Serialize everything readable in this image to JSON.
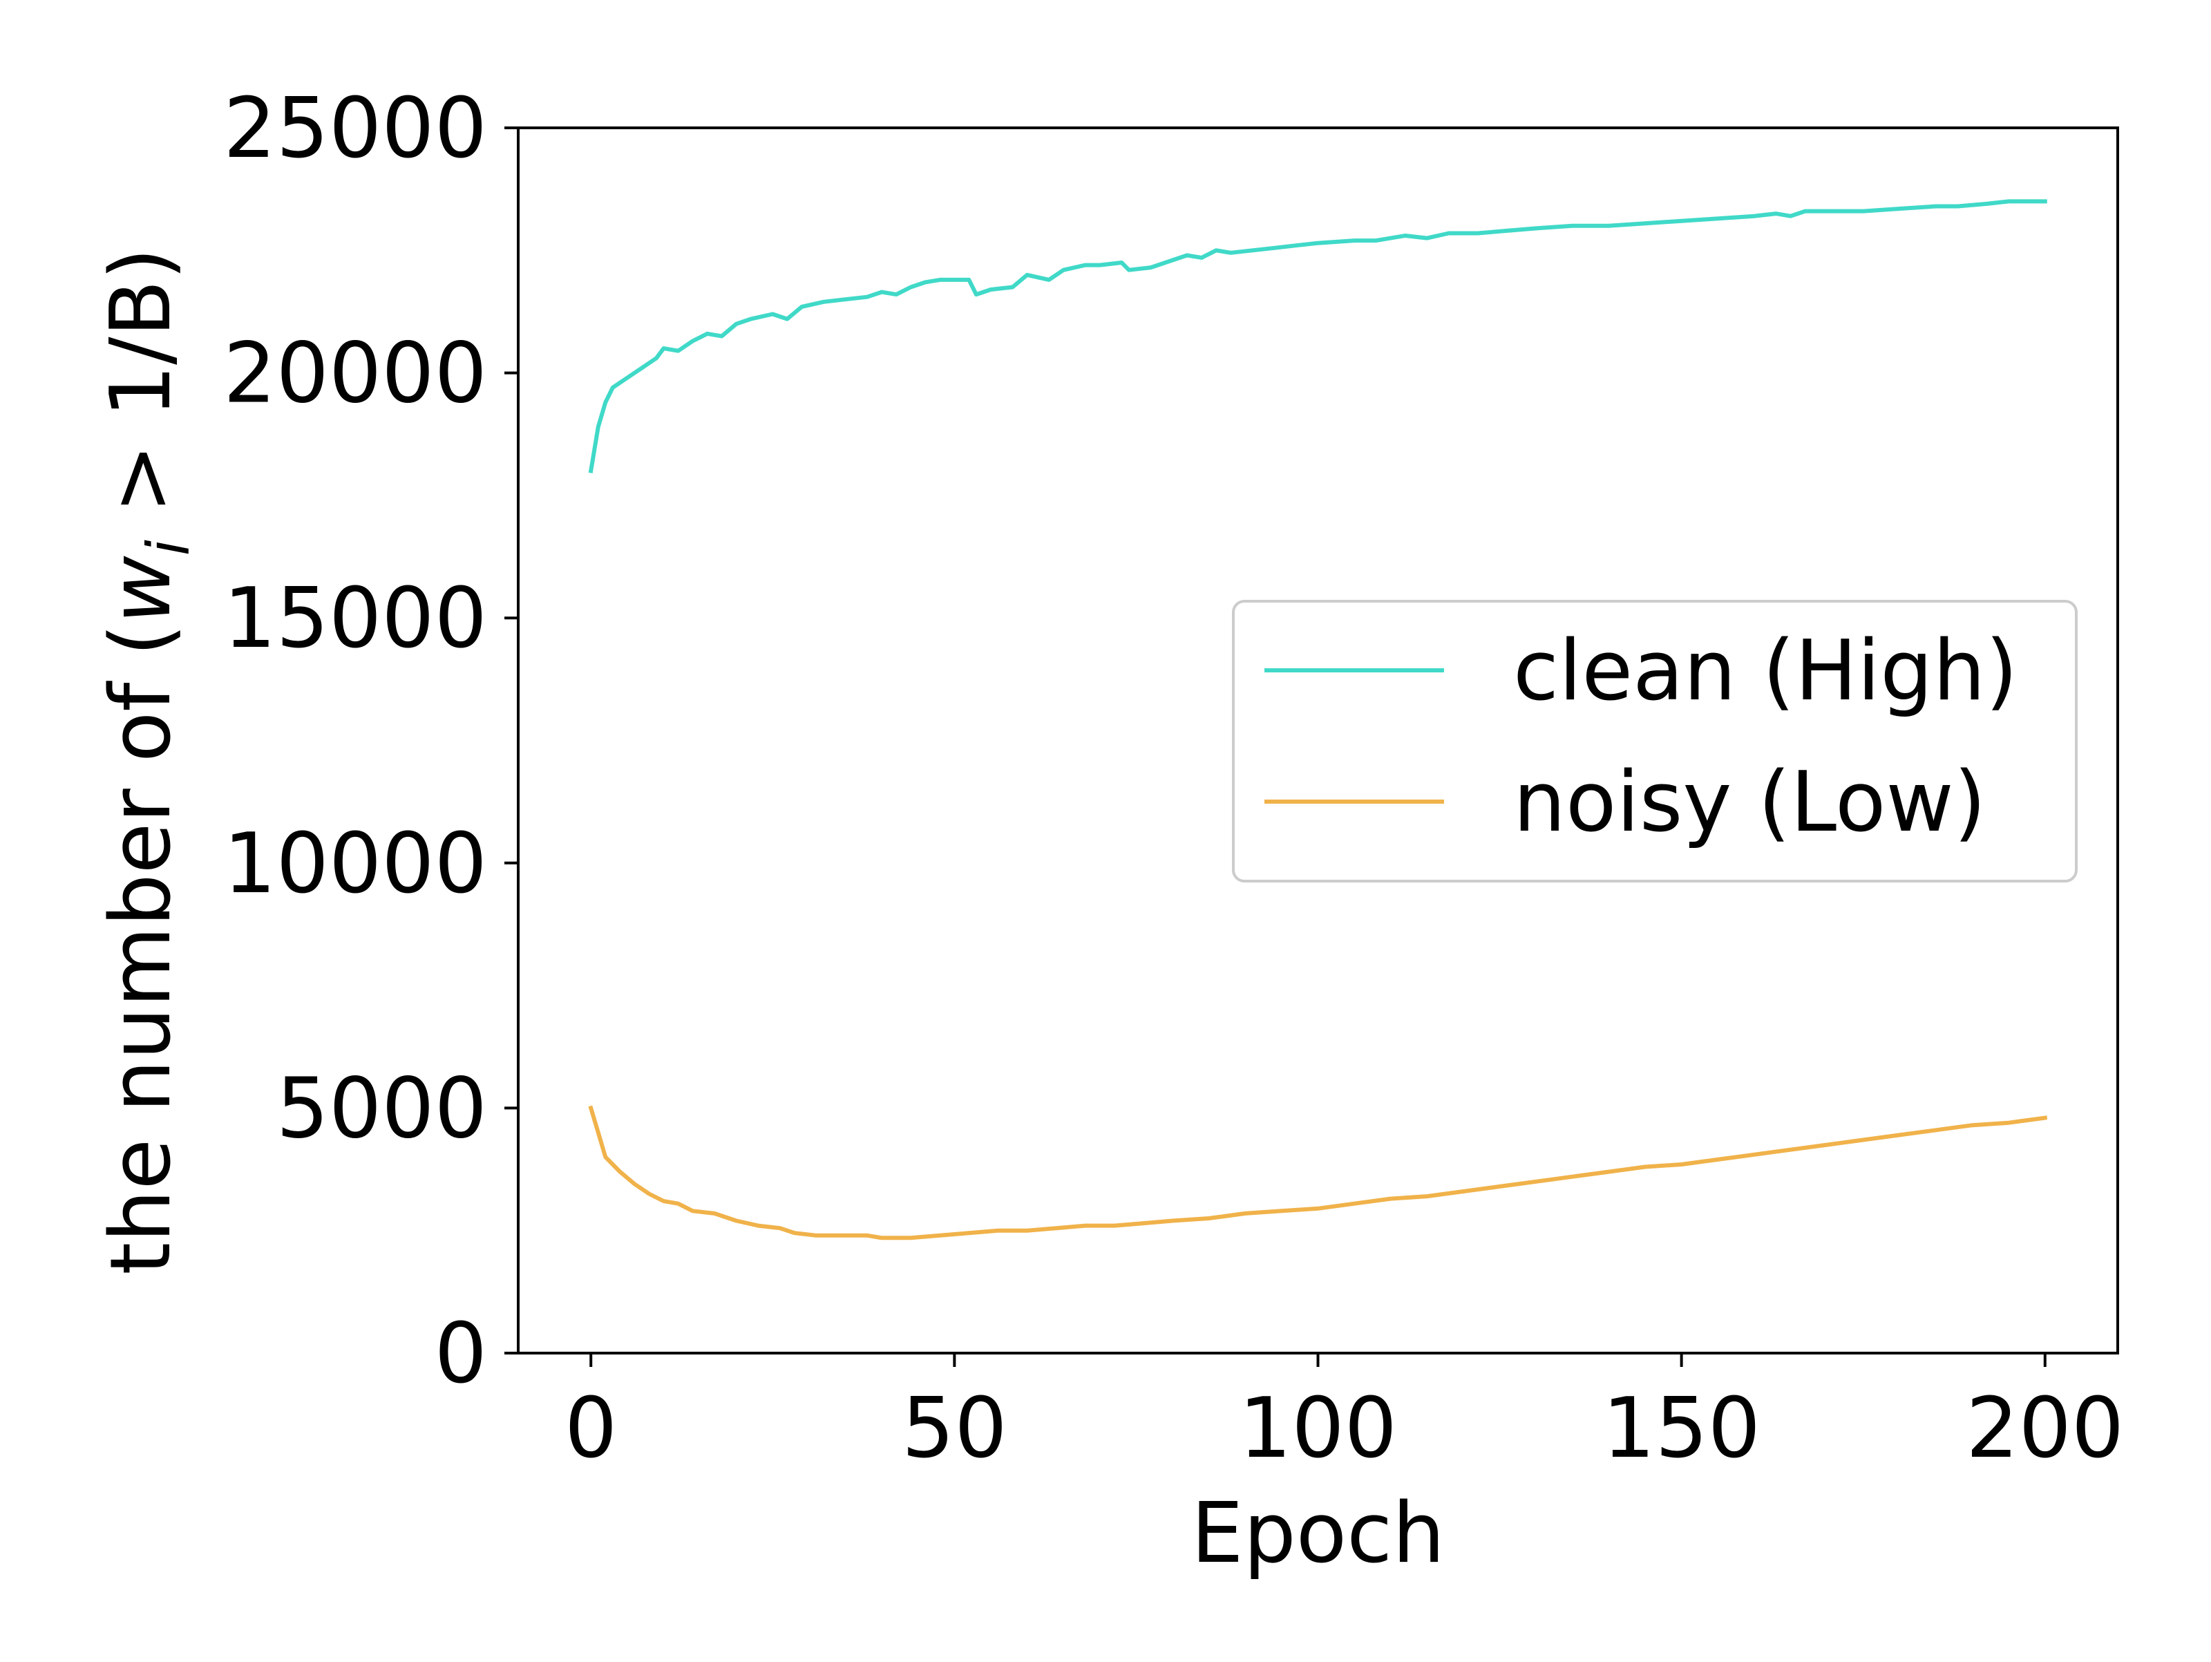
{
  "chart_data": {
    "type": "line",
    "title": "",
    "xlabel": "Epoch",
    "ylabel_parts": {
      "prefix": "the number of (",
      "var": "w",
      "sub": "i",
      "suffix": " > 1/B)"
    },
    "xlim": [
      -10,
      210
    ],
    "ylim": [
      0,
      25000
    ],
    "xticks": [
      0,
      50,
      100,
      150,
      200
    ],
    "yticks": [
      0,
      5000,
      10000,
      15000,
      20000,
      25000
    ],
    "grid": false,
    "legend_position": "center-right",
    "series": [
      {
        "name": "clean (High)",
        "color": "#40d9c8",
        "points": [
          [
            0,
            18000
          ],
          [
            1,
            18900
          ],
          [
            2,
            19400
          ],
          [
            3,
            19700
          ],
          [
            5,
            19900
          ],
          [
            7,
            20100
          ],
          [
            9,
            20300
          ],
          [
            10,
            20500
          ],
          [
            12,
            20450
          ],
          [
            14,
            20650
          ],
          [
            16,
            20800
          ],
          [
            18,
            20750
          ],
          [
            20,
            21000
          ],
          [
            22,
            21100
          ],
          [
            25,
            21200
          ],
          [
            27,
            21100
          ],
          [
            29,
            21350
          ],
          [
            32,
            21450
          ],
          [
            35,
            21500
          ],
          [
            38,
            21550
          ],
          [
            40,
            21650
          ],
          [
            42,
            21600
          ],
          [
            44,
            21750
          ],
          [
            46,
            21850
          ],
          [
            48,
            21900
          ],
          [
            52,
            21900
          ],
          [
            53,
            21600
          ],
          [
            55,
            21700
          ],
          [
            58,
            21750
          ],
          [
            60,
            22000
          ],
          [
            63,
            21900
          ],
          [
            65,
            22100
          ],
          [
            68,
            22200
          ],
          [
            70,
            22200
          ],
          [
            73,
            22250
          ],
          [
            74,
            22100
          ],
          [
            77,
            22150
          ],
          [
            80,
            22300
          ],
          [
            82,
            22400
          ],
          [
            84,
            22350
          ],
          [
            86,
            22500
          ],
          [
            88,
            22450
          ],
          [
            91,
            22500
          ],
          [
            94,
            22550
          ],
          [
            97,
            22600
          ],
          [
            100,
            22650
          ],
          [
            105,
            22700
          ],
          [
            108,
            22700
          ],
          [
            112,
            22800
          ],
          [
            115,
            22750
          ],
          [
            118,
            22850
          ],
          [
            122,
            22850
          ],
          [
            126,
            22900
          ],
          [
            130,
            22950
          ],
          [
            135,
            23000
          ],
          [
            140,
            23000
          ],
          [
            145,
            23050
          ],
          [
            150,
            23100
          ],
          [
            155,
            23150
          ],
          [
            160,
            23200
          ],
          [
            163,
            23250
          ],
          [
            165,
            23200
          ],
          [
            167,
            23300
          ],
          [
            170,
            23300
          ],
          [
            175,
            23300
          ],
          [
            180,
            23350
          ],
          [
            185,
            23400
          ],
          [
            188,
            23400
          ],
          [
            192,
            23450
          ],
          [
            195,
            23500
          ],
          [
            198,
            23500
          ],
          [
            200,
            23500
          ]
        ]
      },
      {
        "name": "noisy (Low)",
        "color": "#f0b24a",
        "points": [
          [
            0,
            5000
          ],
          [
            1,
            4500
          ],
          [
            2,
            4000
          ],
          [
            4,
            3700
          ],
          [
            6,
            3450
          ],
          [
            8,
            3250
          ],
          [
            10,
            3100
          ],
          [
            12,
            3050
          ],
          [
            14,
            2900
          ],
          [
            17,
            2850
          ],
          [
            20,
            2700
          ],
          [
            23,
            2600
          ],
          [
            26,
            2550
          ],
          [
            28,
            2450
          ],
          [
            31,
            2400
          ],
          [
            35,
            2400
          ],
          [
            38,
            2400
          ],
          [
            40,
            2350
          ],
          [
            44,
            2350
          ],
          [
            48,
            2400
          ],
          [
            52,
            2450
          ],
          [
            56,
            2500
          ],
          [
            60,
            2500
          ],
          [
            64,
            2550
          ],
          [
            68,
            2600
          ],
          [
            72,
            2600
          ],
          [
            76,
            2650
          ],
          [
            80,
            2700
          ],
          [
            85,
            2750
          ],
          [
            90,
            2850
          ],
          [
            95,
            2900
          ],
          [
            100,
            2950
          ],
          [
            105,
            3050
          ],
          [
            110,
            3150
          ],
          [
            115,
            3200
          ],
          [
            120,
            3300
          ],
          [
            125,
            3400
          ],
          [
            130,
            3500
          ],
          [
            135,
            3600
          ],
          [
            140,
            3700
          ],
          [
            145,
            3800
          ],
          [
            150,
            3850
          ],
          [
            155,
            3950
          ],
          [
            160,
            4050
          ],
          [
            165,
            4150
          ],
          [
            170,
            4250
          ],
          [
            175,
            4350
          ],
          [
            180,
            4450
          ],
          [
            185,
            4550
          ],
          [
            190,
            4650
          ],
          [
            195,
            4700
          ],
          [
            200,
            4800
          ]
        ]
      }
    ]
  }
}
